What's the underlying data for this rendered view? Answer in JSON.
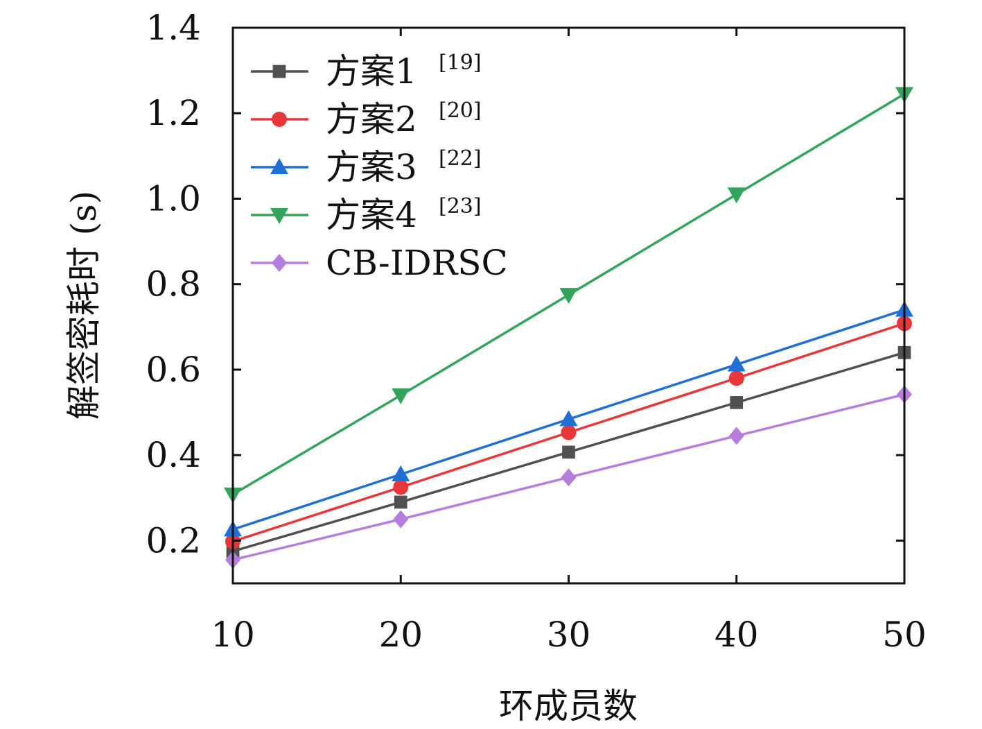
{
  "chart_data": {
    "type": "line",
    "xlabel": "环成员数",
    "ylabel": "解签密耗时 (s)",
    "x": [
      10,
      20,
      30,
      40,
      50
    ],
    "xlim": [
      10,
      50
    ],
    "ylim": [
      0.1,
      1.4
    ],
    "x_ticks": [
      "10",
      "20",
      "30",
      "40",
      "50"
    ],
    "y_ticks": [
      "0.2",
      "0.4",
      "0.6",
      "0.8",
      "1.0",
      "1.2",
      "1.4"
    ],
    "grid": false,
    "legend_position": "top-left",
    "series": [
      {
        "name": "方案1",
        "ref": "[19]",
        "color": "#505050",
        "marker": "square",
        "values": [
          0.175,
          0.29,
          0.407,
          0.523,
          0.64
        ]
      },
      {
        "name": "方案2",
        "ref": "[20]",
        "color": "#e8373a",
        "marker": "circle",
        "values": [
          0.198,
          0.325,
          0.453,
          0.58,
          0.708
        ]
      },
      {
        "name": "方案3",
        "ref": "[22]",
        "color": "#1f6fd6",
        "marker": "triangle-up",
        "values": [
          0.226,
          0.355,
          0.484,
          0.612,
          0.74
        ]
      },
      {
        "name": "方案4",
        "ref": "[23]",
        "color": "#33a45c",
        "marker": "triangle-down",
        "values": [
          0.308,
          0.54,
          0.775,
          1.01,
          1.245
        ]
      },
      {
        "name": "CB-IDRSC",
        "ref": "",
        "color": "#b57ede",
        "marker": "diamond",
        "values": [
          0.155,
          0.25,
          0.348,
          0.445,
          0.542
        ]
      }
    ]
  }
}
